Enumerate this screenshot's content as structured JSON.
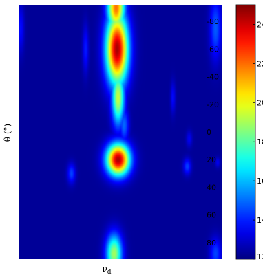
{
  "chart_data": {
    "type": "heatmap",
    "title": "",
    "xlabel": "ν_d",
    "xlabel_main": "ν",
    "xlabel_sub": "d",
    "ylabel": "θ (°)",
    "y_ticks": [
      -80,
      -60,
      -40,
      -20,
      0,
      20,
      40,
      60,
      80
    ],
    "y_tick_labels": [
      "-80",
      "-60",
      "-40",
      "-20",
      "0",
      "20",
      "40",
      "60",
      "80"
    ],
    "ylim": [
      -92,
      92
    ],
    "y_reversed": true,
    "x_ticks_shown": false,
    "grid": false,
    "colormap": "jet",
    "colorbar": {
      "range": [
        12,
        25
      ],
      "ticks": [
        12,
        14,
        16,
        18,
        20,
        22,
        24
      ],
      "tick_labels": [
        "12",
        "14",
        "16",
        "18",
        "20",
        "22",
        "24"
      ]
    },
    "background_value": 12.3,
    "features": [
      {
        "name": "main ridge upper",
        "x": 0.48,
        "y": -90,
        "value": 22.0
      },
      {
        "name": "main ridge peak",
        "x": 0.485,
        "y": -60,
        "value": 24.5
      },
      {
        "name": "main ridge mid",
        "x": 0.49,
        "y": -25,
        "value": 19.5
      },
      {
        "name": "main ridge lower",
        "x": 0.52,
        "y": -5,
        "value": 15.0
      },
      {
        "name": "central peak",
        "x": 0.49,
        "y": 20,
        "value": 24.5
      },
      {
        "name": "bottom ridge",
        "x": 0.47,
        "y": 88,
        "value": 19.0
      },
      {
        "name": "right edge top",
        "x": 0.97,
        "y": -75,
        "value": 14.8
      },
      {
        "name": "right edge bottom",
        "x": 0.97,
        "y": 88,
        "value": 14.5
      },
      {
        "name": "left edge top",
        "x": 0.01,
        "y": -75,
        "value": 13.8
      },
      {
        "name": "left blob",
        "x": 0.26,
        "y": 30,
        "value": 14.5
      },
      {
        "name": "upper-left streak",
        "x": 0.33,
        "y": -60,
        "value": 14.0
      },
      {
        "name": "right small blob",
        "x": 0.83,
        "y": 25,
        "value": 14.5
      },
      {
        "name": "right streak",
        "x": 0.76,
        "y": -25,
        "value": 13.8
      },
      {
        "name": "right lower blob",
        "x": 0.84,
        "y": 5,
        "value": 13.5
      },
      {
        "name": "far right dot",
        "x": 0.98,
        "y": 22,
        "value": 13.5
      }
    ]
  }
}
